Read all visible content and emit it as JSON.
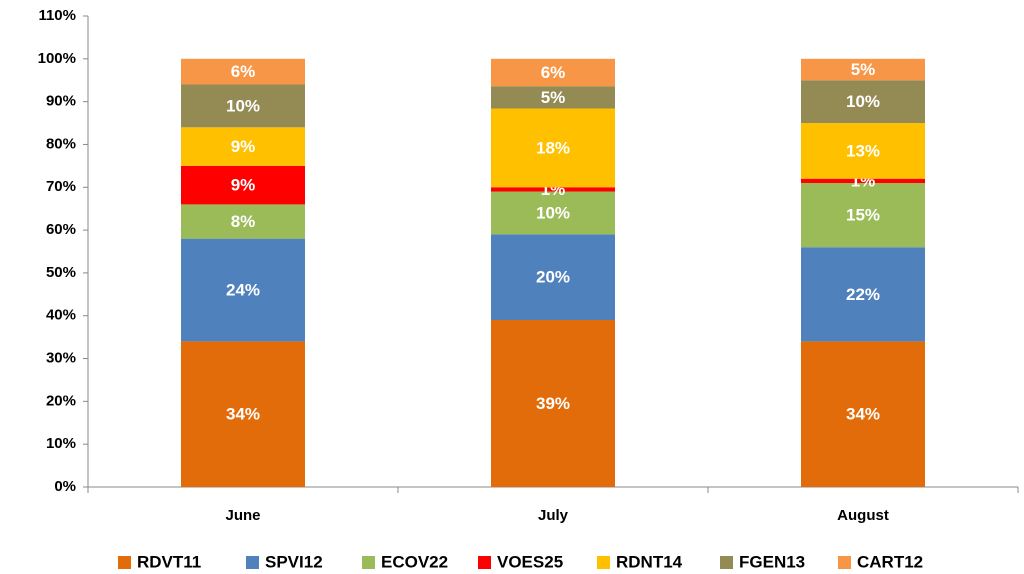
{
  "chart_data": {
    "type": "stacked_bar",
    "categories": [
      "June",
      "July",
      "August"
    ],
    "series": [
      {
        "name": "RDVT11",
        "color": "#e36c0a",
        "values": [
          34,
          39,
          34
        ],
        "value_labels": [
          "34%",
          "39%",
          "34%"
        ]
      },
      {
        "name": "SPVI12",
        "color": "#4f81bd",
        "values": [
          24,
          20,
          22
        ],
        "value_labels": [
          "24%",
          "20%",
          "22%"
        ]
      },
      {
        "name": "ECOV22",
        "color": "#9bbb59",
        "values": [
          8,
          10,
          15
        ],
        "value_labels": [
          "8%",
          "10%",
          "15%"
        ]
      },
      {
        "name": "VOES25",
        "color": "#ff0000",
        "values": [
          9,
          1,
          1
        ],
        "value_labels": [
          "9%",
          "1%",
          "1%"
        ]
      },
      {
        "name": "RDNT14",
        "color": "#ffc000",
        "values": [
          9,
          18.4,
          13
        ],
        "value_labels": [
          "9%",
          "18%",
          "13%"
        ]
      },
      {
        "name": "FGEN13",
        "color": "#948a54",
        "values": [
          10,
          5.2,
          10
        ],
        "value_labels": [
          "10%",
          "5%",
          "10%"
        ]
      },
      {
        "name": "CART12",
        "color": "#f79646",
        "values": [
          6,
          6.4,
          5
        ],
        "value_labels": [
          "6%",
          "6%",
          "5%"
        ]
      }
    ],
    "ylim": [
      0,
      110
    ],
    "yticks": [
      {
        "value": 0,
        "label": "0%"
      },
      {
        "value": 10,
        "label": "10%"
      },
      {
        "value": 20,
        "label": "20%"
      },
      {
        "value": 30,
        "label": "30%"
      },
      {
        "value": 40,
        "label": "40%"
      },
      {
        "value": 50,
        "label": "50%"
      },
      {
        "value": 60,
        "label": "60%"
      },
      {
        "value": 70,
        "label": "70%"
      },
      {
        "value": 80,
        "label": "80%"
      },
      {
        "value": 90,
        "label": "90%"
      },
      {
        "value": 100,
        "label": "100%"
      },
      {
        "value": 110,
        "label": "110%"
      }
    ],
    "legend": "bottom"
  }
}
